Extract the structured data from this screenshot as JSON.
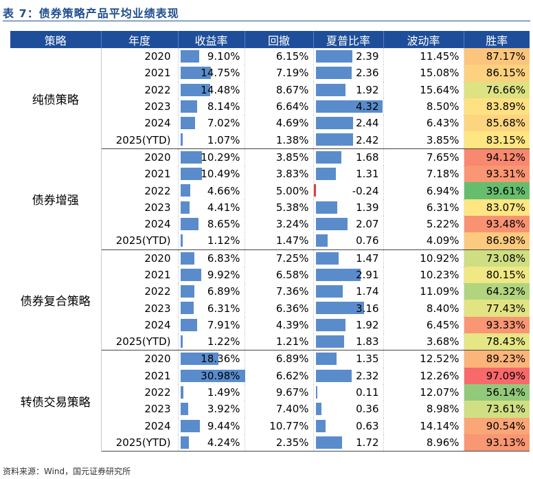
{
  "title": "表 7：债券策略产品平均业绩表现",
  "source": "资料来源：Wind，国元证券研究所",
  "headers": [
    "策略",
    "年度",
    "收益率",
    "回撤",
    "夏普比率",
    "波动率",
    "胜率"
  ],
  "groups": [
    {
      "name": "纯债策略",
      "rows": [
        {
          "year": "2020",
          "ret": "9.10%",
          "ret_v": 9.1,
          "dd": "6.15%",
          "sharpe": "2.39",
          "sharpe_v": 2.39,
          "vol": "11.45%",
          "win": "87.17%",
          "win_color": "#fbc57e"
        },
        {
          "year": "2021",
          "ret": "14.75%",
          "ret_v": 14.75,
          "dd": "7.19%",
          "sharpe": "2.36",
          "sharpe_v": 2.36,
          "vol": "15.08%",
          "win": "86.15%",
          "win_color": "#fcd17f"
        },
        {
          "year": "2022",
          "ret": "14.48%",
          "ret_v": 14.48,
          "dd": "8.67%",
          "sharpe": "1.92",
          "sharpe_v": 1.92,
          "vol": "15.64%",
          "win": "76.66%",
          "win_color": "#dde283"
        },
        {
          "year": "2023",
          "ret": "8.14%",
          "ret_v": 8.14,
          "dd": "6.64%",
          "sharpe": "4.32",
          "sharpe_v": 4.32,
          "vol": "8.50%",
          "win": "83.89%",
          "win_color": "#fee182"
        },
        {
          "year": "2024",
          "ret": "7.02%",
          "ret_v": 7.02,
          "dd": "4.69%",
          "sharpe": "2.44",
          "sharpe_v": 2.44,
          "vol": "6.43%",
          "win": "85.68%",
          "win_color": "#fdd580"
        },
        {
          "year": "2025(YTD)",
          "ret": "1.07%",
          "ret_v": 1.07,
          "dd": "1.38%",
          "sharpe": "2.42",
          "sharpe_v": 2.42,
          "vol": "3.85%",
          "win": "83.15%",
          "win_color": "#fee683"
        }
      ]
    },
    {
      "name": "债券增强",
      "rows": [
        {
          "year": "2020",
          "ret": "10.29%",
          "ret_v": 10.29,
          "dd": "3.85%",
          "sharpe": "1.68",
          "sharpe_v": 1.68,
          "vol": "7.65%",
          "win": "94.12%",
          "win_color": "#f8886f"
        },
        {
          "year": "2021",
          "ret": "10.49%",
          "ret_v": 10.49,
          "dd": "3.83%",
          "sharpe": "1.31",
          "sharpe_v": 1.31,
          "vol": "7.18%",
          "win": "93.31%",
          "win_color": "#f99673"
        },
        {
          "year": "2022",
          "ret": "4.66%",
          "ret_v": 4.66,
          "dd": "5.00%",
          "sharpe": "-0.24",
          "sharpe_v": -0.24,
          "vol": "6.94%",
          "win": "39.61%",
          "win_color": "#66bd6e"
        },
        {
          "year": "2023",
          "ret": "4.41%",
          "ret_v": 4.41,
          "dd": "5.38%",
          "sharpe": "1.39",
          "sharpe_v": 1.39,
          "vol": "6.31%",
          "win": "83.07%",
          "win_color": "#fee683"
        },
        {
          "year": "2024",
          "ret": "8.65%",
          "ret_v": 8.65,
          "dd": "3.24%",
          "sharpe": "2.07",
          "sharpe_v": 2.07,
          "vol": "5.22%",
          "win": "93.48%",
          "win_color": "#f99272"
        },
        {
          "year": "2025(YTD)",
          "ret": "1.12%",
          "ret_v": 1.12,
          "dd": "1.47%",
          "sharpe": "0.76",
          "sharpe_v": 0.76,
          "vol": "4.09%",
          "win": "86.98%",
          "win_color": "#fcca7e"
        }
      ]
    },
    {
      "name": "债券复合策略",
      "rows": [
        {
          "year": "2020",
          "ret": "6.83%",
          "ret_v": 6.83,
          "dd": "7.25%",
          "sharpe": "1.47",
          "sharpe_v": 1.47,
          "vol": "10.92%",
          "win": "73.08%",
          "win_color": "#cfde82"
        },
        {
          "year": "2021",
          "ret": "9.92%",
          "ret_v": 9.92,
          "dd": "6.58%",
          "sharpe": "2.91",
          "sharpe_v": 2.91,
          "vol": "10.23%",
          "win": "80.15%",
          "win_color": "#efe884"
        },
        {
          "year": "2022",
          "ret": "6.89%",
          "ret_v": 6.89,
          "dd": "7.36%",
          "sharpe": "1.74",
          "sharpe_v": 1.74,
          "vol": "11.09%",
          "win": "64.32%",
          "win_color": "#b2d47f"
        },
        {
          "year": "2023",
          "ret": "6.31%",
          "ret_v": 6.31,
          "dd": "6.36%",
          "sharpe": "3.16",
          "sharpe_v": 3.16,
          "vol": "8.40%",
          "win": "77.43%",
          "win_color": "#e2e484"
        },
        {
          "year": "2024",
          "ret": "7.91%",
          "ret_v": 7.91,
          "dd": "4.39%",
          "sharpe": "1.92",
          "sharpe_v": 1.92,
          "vol": "6.45%",
          "win": "93.33%",
          "win_color": "#f99673"
        },
        {
          "year": "2025(YTD)",
          "ret": "1.22%",
          "ret_v": 1.22,
          "dd": "1.21%",
          "sharpe": "1.83",
          "sharpe_v": 1.83,
          "vol": "3.68%",
          "win": "78.43%",
          "win_color": "#e6e684"
        }
      ]
    },
    {
      "name": "转债交易策略",
      "rows": [
        {
          "year": "2020",
          "ret": "18.36%",
          "ret_v": 18.36,
          "dd": "6.89%",
          "sharpe": "1.35",
          "sharpe_v": 1.35,
          "vol": "12.52%",
          "win": "89.23%",
          "win_color": "#fbb479"
        },
        {
          "year": "2021",
          "ret": "30.98%",
          "ret_v": 30.98,
          "dd": "6.62%",
          "sharpe": "2.32",
          "sharpe_v": 2.32,
          "vol": "12.26%",
          "win": "97.09%",
          "win_color": "#f8696b"
        },
        {
          "year": "2022",
          "ret": "1.49%",
          "ret_v": 1.49,
          "dd": "9.67%",
          "sharpe": "0.11",
          "sharpe_v": 0.11,
          "vol": "12.07%",
          "win": "56.14%",
          "win_color": "#93c97b"
        },
        {
          "year": "2023",
          "ret": "3.92%",
          "ret_v": 3.92,
          "dd": "7.40%",
          "sharpe": "0.36",
          "sharpe_v": 0.36,
          "vol": "8.98%",
          "win": "73.61%",
          "win_color": "#d0df83"
        },
        {
          "year": "2024",
          "ret": "9.44%",
          "ret_v": 9.44,
          "dd": "10.77%",
          "sharpe": "0.63",
          "sharpe_v": 0.63,
          "vol": "14.14%",
          "win": "90.54%",
          "win_color": "#faa676"
        },
        {
          "year": "2025(YTD)",
          "ret": "4.24%",
          "ret_v": 4.24,
          "dd": "2.35%",
          "sharpe": "1.72",
          "sharpe_v": 1.72,
          "vol": "8.96%",
          "win": "93.13%",
          "win_color": "#f99673"
        }
      ]
    }
  ]
}
